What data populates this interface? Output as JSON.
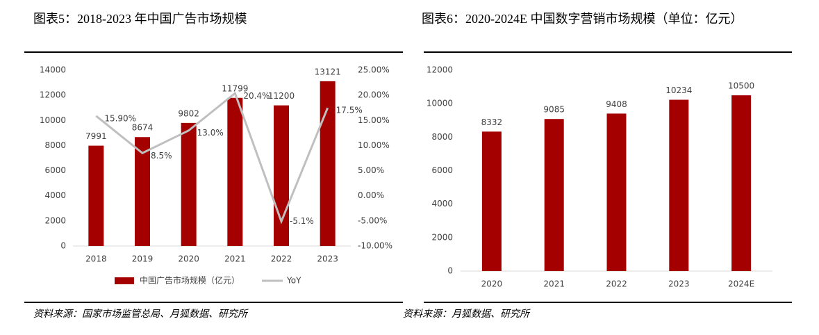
{
  "chart_data": [
    {
      "type": "bar-line",
      "title": "图表5：2018-2023 年中国广告市场规模",
      "source": "资料来源：国家市场监管总局、月狐数据、研究所",
      "categories": [
        "2018",
        "2019",
        "2020",
        "2021",
        "2022",
        "2023"
      ],
      "series": [
        {
          "name": "中国广告市场规模（亿元）",
          "color": "#a50000",
          "values": [
            7991,
            8674,
            9802,
            11799,
            11200,
            13121
          ]
        },
        {
          "name": "YoY",
          "color": "#bfbfbf",
          "axis": "y2",
          "values": [
            15.9,
            8.5,
            13.0,
            20.4,
            -5.1,
            17.5
          ],
          "value_labels": [
            "15.90%",
            "8.5%",
            "13.0%",
            "20.4%",
            "-5.1%",
            "17.5%"
          ]
        }
      ],
      "ylim": [
        0,
        14000
      ],
      "yticks": [
        0,
        2000,
        4000,
        6000,
        8000,
        10000,
        12000,
        14000
      ],
      "y2lim": [
        -10,
        25
      ],
      "y2ticks": [
        {
          "value": -10,
          "label": "-10.00%"
        },
        {
          "value": -5,
          "label": "-5.00%"
        },
        {
          "value": 0,
          "label": "0.00%"
        },
        {
          "value": 5,
          "label": "5.00%"
        },
        {
          "value": 10,
          "label": "10.00%"
        },
        {
          "value": 15,
          "label": "15.00%"
        },
        {
          "value": 20,
          "label": "20.00%"
        },
        {
          "value": 25,
          "label": "25.00%"
        }
      ],
      "grid": false,
      "legend": "bottom"
    },
    {
      "type": "bar",
      "title": "图表6：2020-2024E 中国数字营销市场规模（单位：亿元）",
      "source": "资料来源：月狐数据、研究所",
      "categories": [
        "2020",
        "2021",
        "2022",
        "2023",
        "2024E"
      ],
      "values": [
        8332,
        9085,
        9408,
        10234,
        10500
      ],
      "color": "#a50000",
      "ylim": [
        0,
        12000
      ],
      "yticks": [
        0,
        2000,
        4000,
        6000,
        8000,
        10000,
        12000
      ],
      "grid": false
    }
  ]
}
